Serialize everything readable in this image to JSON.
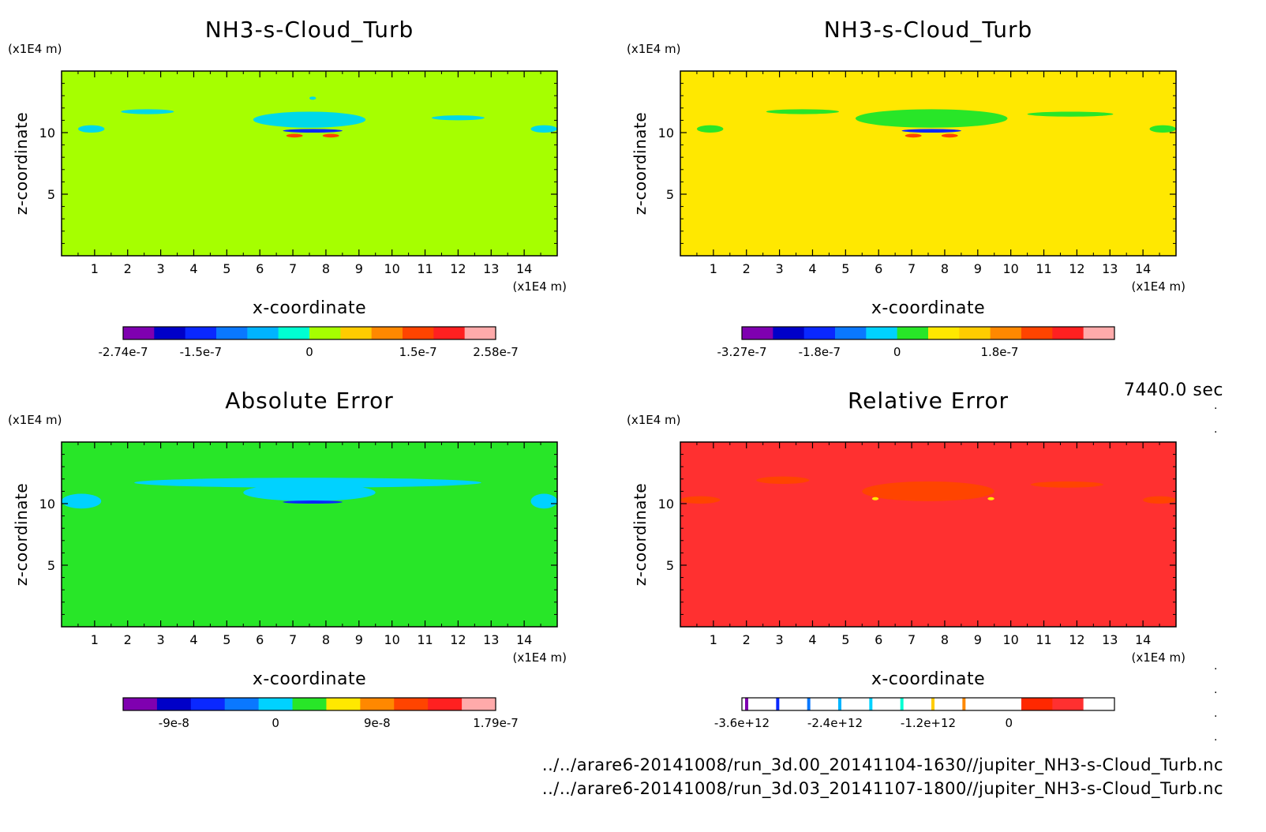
{
  "time_label": "7440.0 sec",
  "files": [
    "../../arare6-20141008/run_3d.00_20141104-1630//jupiter_NH3-s-Cloud_Turb.nc",
    "../../arare6-20141008/run_3d.03_20141107-1800//jupiter_NH3-s-Cloud_Turb.nc"
  ],
  "chart_data": [
    {
      "type": "heatmap",
      "title": "NH3-s-Cloud_Turb",
      "xlabel": "x-coordinate",
      "ylabel": "z-coordinate",
      "x_unit": "(x1E4 m)",
      "y_unit": "(x1E4 m)",
      "xlim": [
        0,
        15
      ],
      "ylim": [
        0,
        15
      ],
      "x_ticks": [
        1,
        2,
        3,
        4,
        5,
        6,
        7,
        8,
        9,
        10,
        11,
        12,
        13,
        14
      ],
      "y_ticks": [
        5,
        10
      ],
      "background_color": "#a6ff00",
      "colorbar": {
        "colors": [
          "#7f00b0",
          "#0000c8",
          "#0a28ff",
          "#0a78ff",
          "#00b4ff",
          "#00ffd2",
          "#a6ff00",
          "#ffcc00",
          "#ff8800",
          "#ff4400",
          "#ff2020",
          "#ffaaaa"
        ],
        "labels": [
          "-2.74e-7",
          "-1.5e-7",
          "0",
          "1.5e-7",
          "2.58e-7"
        ]
      },
      "features": [
        {
          "color": "#00d8e8",
          "x": 1.8,
          "z": 11.5,
          "w": 1.6,
          "h": 0.4
        },
        {
          "color": "#00d8e8",
          "x": 11.2,
          "z": 11.0,
          "w": 1.6,
          "h": 0.4
        },
        {
          "color": "#00d8e8",
          "x": 5.8,
          "z": 10.4,
          "w": 3.4,
          "h": 1.3
        },
        {
          "color": "#0a28ff",
          "x": 6.7,
          "z": 10.0,
          "w": 1.8,
          "h": 0.3
        },
        {
          "color": "#ff4400",
          "x": 6.8,
          "z": 9.6,
          "w": 0.5,
          "h": 0.3
        },
        {
          "color": "#ff4400",
          "x": 7.9,
          "z": 9.6,
          "w": 0.5,
          "h": 0.3
        },
        {
          "color": "#00d8e8",
          "x": 0.5,
          "z": 10.0,
          "w": 0.8,
          "h": 0.6
        },
        {
          "color": "#00d8e8",
          "x": 14.2,
          "z": 10.0,
          "w": 0.8,
          "h": 0.6
        },
        {
          "color": "#00d8e8",
          "x": 7.5,
          "z": 12.7,
          "w": 0.2,
          "h": 0.2
        }
      ]
    },
    {
      "type": "heatmap",
      "title": "NH3-s-Cloud_Turb",
      "xlabel": "x-coordinate",
      "ylabel": "z-coordinate",
      "x_unit": "(x1E4 m)",
      "y_unit": "(x1E4 m)",
      "xlim": [
        0,
        15
      ],
      "ylim": [
        0,
        15
      ],
      "x_ticks": [
        1,
        2,
        3,
        4,
        5,
        6,
        7,
        8,
        9,
        10,
        11,
        12,
        13,
        14
      ],
      "y_ticks": [
        5,
        10
      ],
      "background_color": "#ffe800",
      "colorbar": {
        "colors": [
          "#7f00b0",
          "#0000c8",
          "#0a28ff",
          "#0a78ff",
          "#00d2ff",
          "#28e628",
          "#ffe800",
          "#ffcc00",
          "#ff8800",
          "#ff4400",
          "#ff2020",
          "#ffaaaa"
        ],
        "labels": [
          "-3.27e-7",
          "-1.8e-7",
          "0",
          "1.8e-7"
        ]
      },
      "features": [
        {
          "color": "#28e628",
          "x": 2.6,
          "z": 11.5,
          "w": 2.2,
          "h": 0.4
        },
        {
          "color": "#28e628",
          "x": 10.5,
          "z": 11.3,
          "w": 2.6,
          "h": 0.4
        },
        {
          "color": "#28e628",
          "x": 5.3,
          "z": 10.4,
          "w": 4.6,
          "h": 1.5
        },
        {
          "color": "#0a28ff",
          "x": 6.7,
          "z": 10.0,
          "w": 1.8,
          "h": 0.3
        },
        {
          "color": "#ff4400",
          "x": 6.8,
          "z": 9.6,
          "w": 0.5,
          "h": 0.3
        },
        {
          "color": "#ff4400",
          "x": 7.9,
          "z": 9.6,
          "w": 0.5,
          "h": 0.3
        },
        {
          "color": "#28e628",
          "x": 0.5,
          "z": 10.0,
          "w": 0.8,
          "h": 0.6
        },
        {
          "color": "#28e628",
          "x": 14.2,
          "z": 10.0,
          "w": 0.8,
          "h": 0.6
        }
      ]
    },
    {
      "type": "heatmap",
      "title": "Absolute Error",
      "xlabel": "x-coordinate",
      "ylabel": "z-coordinate",
      "x_unit": "(x1E4 m)",
      "y_unit": "(x1E4 m)",
      "xlim": [
        0,
        15
      ],
      "ylim": [
        0,
        15
      ],
      "x_ticks": [
        1,
        2,
        3,
        4,
        5,
        6,
        7,
        8,
        9,
        10,
        11,
        12,
        13,
        14
      ],
      "y_ticks": [
        5,
        10
      ],
      "background_color": "#28e628",
      "colorbar": {
        "colors": [
          "#7f00b0",
          "#0000c8",
          "#0a28ff",
          "#0a78ff",
          "#00d2ff",
          "#28e628",
          "#ffe800",
          "#ff8800",
          "#ff4400",
          "#ff2020",
          "#ffaaaa"
        ],
        "labels": [
          "-9e-8",
          "0",
          "9e-8",
          "1.79e-7"
        ]
      },
      "features": [
        {
          "color": "#00d2ff",
          "x": 2.2,
          "z": 11.3,
          "w": 10.5,
          "h": 0.8
        },
        {
          "color": "#00d2ff",
          "x": 5.5,
          "z": 10.2,
          "w": 4.0,
          "h": 1.4
        },
        {
          "color": "#0a28ff",
          "x": 6.7,
          "z": 10.0,
          "w": 1.8,
          "h": 0.25
        },
        {
          "color": "#00d2ff",
          "x": 0.0,
          "z": 9.6,
          "w": 1.2,
          "h": 1.2
        },
        {
          "color": "#00d2ff",
          "x": 14.2,
          "z": 9.6,
          "w": 0.8,
          "h": 1.2
        }
      ]
    },
    {
      "type": "heatmap",
      "title": "Relative Error",
      "xlabel": "x-coordinate",
      "ylabel": "z-coordinate",
      "x_unit": "(x1E4 m)",
      "y_unit": "(x1E4 m)",
      "xlim": [
        0,
        15
      ],
      "ylim": [
        0,
        15
      ],
      "x_ticks": [
        1,
        2,
        3,
        4,
        5,
        6,
        7,
        8,
        9,
        10,
        11,
        12,
        13,
        14
      ],
      "y_ticks": [
        5,
        10
      ],
      "background_color": "#ff3030",
      "colorbar": {
        "colors": [
          "#ffffff",
          "#ffffff",
          "#ffffff",
          "#ffffff",
          "#ffffff",
          "#ffffff",
          "#ffffff",
          "#ffffff",
          "#ffffff",
          "#ff2800",
          "#ff3030",
          "#ffffff"
        ],
        "stripes": [
          "#7f00b0",
          "#0a28ff",
          "#0a78ff",
          "#00b4ff",
          "#00d2ff",
          "#00ffd2",
          "#ffcc00",
          "#ff8800"
        ],
        "labels": [
          "-3.6e+12",
          "-2.4e+12",
          "-1.2e+12",
          "0"
        ]
      },
      "features": [
        {
          "color": "#ff4400",
          "x": 2.3,
          "z": 11.6,
          "w": 1.6,
          "h": 0.6
        },
        {
          "color": "#ff4400",
          "x": 10.6,
          "z": 11.3,
          "w": 2.2,
          "h": 0.5
        },
        {
          "color": "#ff4400",
          "x": 5.5,
          "z": 10.2,
          "w": 4.0,
          "h": 1.6
        },
        {
          "color": "#ff4400",
          "x": 0.0,
          "z": 10.0,
          "w": 1.2,
          "h": 0.6
        },
        {
          "color": "#ff4400",
          "x": 14.0,
          "z": 10.0,
          "w": 1.0,
          "h": 0.6
        },
        {
          "color": "#ffe800",
          "x": 5.8,
          "z": 10.3,
          "w": 0.2,
          "h": 0.2
        },
        {
          "color": "#ffe800",
          "x": 9.3,
          "z": 10.3,
          "w": 0.2,
          "h": 0.2
        }
      ]
    }
  ]
}
